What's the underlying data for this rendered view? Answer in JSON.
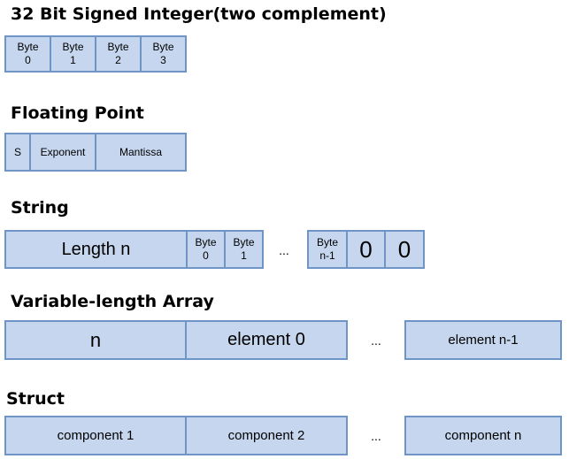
{
  "sections": {
    "int32": {
      "title": "32 Bit Signed Integer(two complement)",
      "cells": [
        "Byte\n0",
        "Byte\n1",
        "Byte\n2",
        "Byte\n3"
      ]
    },
    "float": {
      "title": "Floating Point",
      "cells": [
        "S",
        "Exponent",
        "Mantissa"
      ]
    },
    "string": {
      "title": "String",
      "length": "Length n",
      "byte0": "Byte\n0",
      "byte1": "Byte\n1",
      "ellipsis": "...",
      "byte_last": "Byte\nn-1",
      "zero_a": "0",
      "zero_b": "0"
    },
    "array": {
      "title": "Variable-length Array",
      "n": "n",
      "element0": "element 0",
      "ellipsis": "...",
      "element_last": "element n-1"
    },
    "struct": {
      "title": "Struct",
      "component1": "component 1",
      "component2": "component 2",
      "ellipsis": "...",
      "component_last": "component n"
    }
  }
}
